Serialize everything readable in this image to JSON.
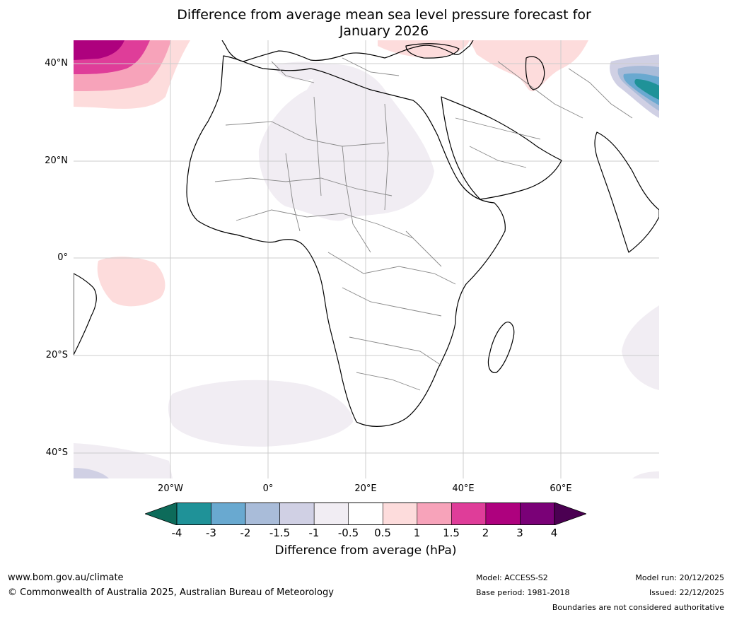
{
  "title_line1": "Difference from average mean sea level pressure forecast for",
  "title_line2": "January 2026",
  "lat_labels": [
    "40°N",
    "20°N",
    "0°",
    "20°S",
    "40°S"
  ],
  "lon_labels": [
    "20°W",
    "0°",
    "20°E",
    "40°E",
    "60°E"
  ],
  "colorbar": {
    "label": "Difference from average (hPa)",
    "ticks": [
      "-4",
      "-3",
      "-2",
      "-1.5",
      "-1",
      "-0.5",
      "0.5",
      "1",
      "1.5",
      "2",
      "3",
      "4"
    ],
    "colors": {
      "below_min": "#0d6b5a",
      "bins": [
        "#1f9298",
        "#69a9d0",
        "#a9bcd9",
        "#d0d0e4",
        "#f1edf3",
        "#ffffff",
        "#fddcdc",
        "#f7a3ba",
        "#df3d99",
        "#ae017e",
        "#7a0177"
      ],
      "above_max": "#4b0052"
    }
  },
  "footer": {
    "website": "www.bom.gov.au/climate",
    "copyright": "© Commonwealth of Australia 2025, Australian Bureau of Meteorology",
    "model": "Model: ACCESS-S2",
    "base_period": "Base period: 1981-2018",
    "model_run": "Model run: 20/12/2025",
    "issued": "Issued: 22/12/2025",
    "disclaimer": "Boundaries are not considered authoritative"
  }
}
